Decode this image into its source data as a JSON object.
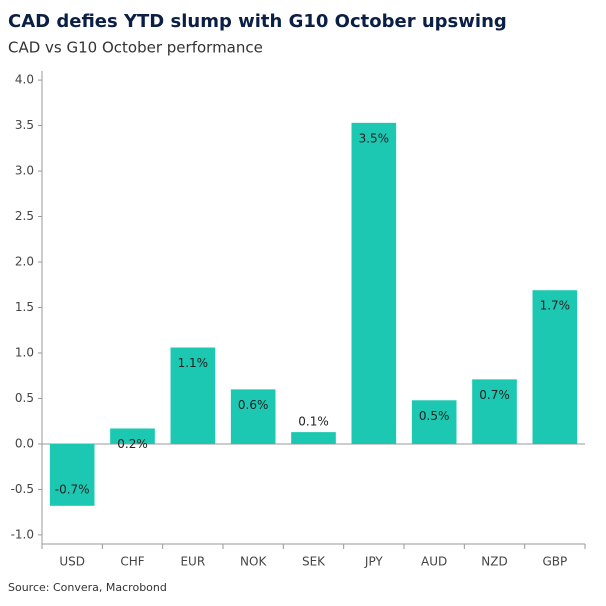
{
  "chart_data": {
    "type": "bar",
    "title": "CAD defies YTD slump with G10 October upswing",
    "subtitle": "CAD vs G10 October performance",
    "source": "Source: Convera, Macrobond",
    "categories": [
      "USD",
      "CHF",
      "EUR",
      "NOK",
      "SEK",
      "JPY",
      "AUD",
      "NZD",
      "GBP"
    ],
    "values": [
      -0.68,
      0.17,
      1.06,
      0.6,
      0.13,
      3.53,
      0.48,
      0.71,
      1.69
    ],
    "value_labels": [
      "-0.7%",
      "0.2%",
      "1.1%",
      "0.6%",
      "0.1%",
      "3.5%",
      "0.5%",
      "0.7%",
      "1.7%"
    ],
    "color": "#1dc8b2",
    "ylim": [
      -1.1,
      4.1
    ],
    "yticks": [
      {
        "value": -1,
        "label": "-1.0"
      },
      -0.5,
      {
        "value": 0,
        "label": "0.0"
      },
      0.5,
      {
        "value": 1,
        "label": "1.0"
      },
      1.5,
      {
        "value": 2,
        "label": "2.0"
      },
      2.5,
      {
        "value": 3,
        "label": "3.0"
      },
      3.5,
      {
        "value": 4,
        "label": "4.0"
      }
    ]
  }
}
